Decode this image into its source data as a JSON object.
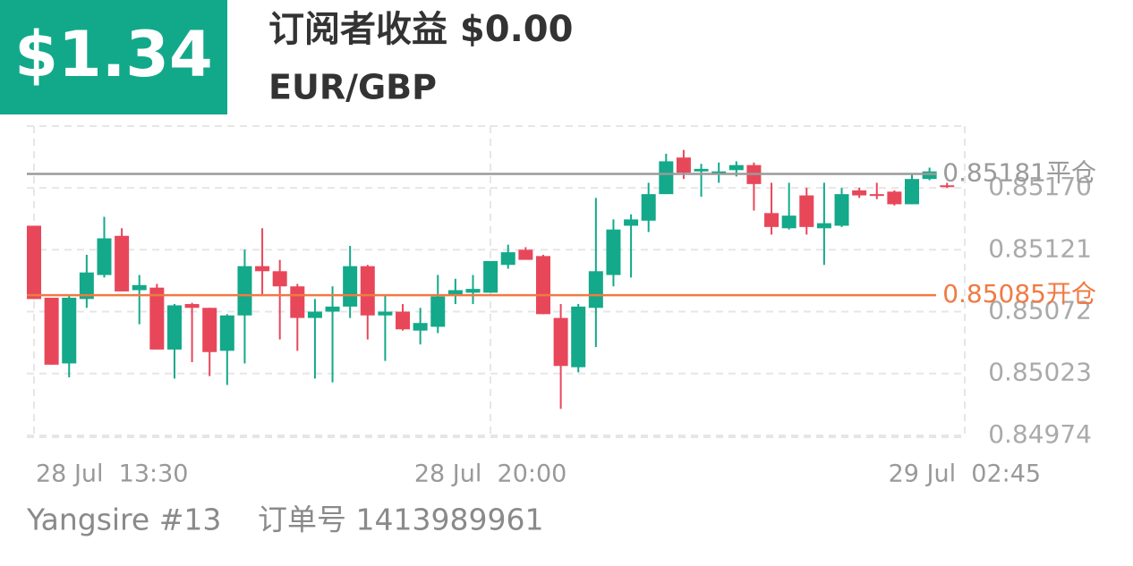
{
  "header": {
    "amount": "$1.34",
    "title": "订阅者收益 $0.00",
    "symbol": "EUR/GBP"
  },
  "chart_data": {
    "type": "candlestick",
    "categories": [
      "28 Jul  13:30",
      null,
      null,
      null,
      null,
      null,
      null,
      null,
      null,
      null,
      null,
      null,
      null,
      null,
      null,
      null,
      null,
      null,
      null,
      null,
      null,
      null,
      null,
      null,
      null,
      null,
      "28 Jul  20:00",
      null,
      null,
      null,
      null,
      null,
      null,
      null,
      null,
      null,
      null,
      null,
      null,
      null,
      null,
      null,
      null,
      null,
      null,
      null,
      null,
      null,
      null,
      null,
      null,
      null,
      null,
      "29 Jul  02:45"
    ],
    "open": [
      0.8514,
      0.85083,
      0.85031,
      0.85082,
      0.85101,
      0.85132,
      0.85089,
      0.85091,
      0.85042,
      0.85078,
      0.85075,
      0.85041,
      0.85069,
      0.85108,
      0.85104,
      0.85092,
      0.85067,
      0.85072,
      0.85076,
      0.85108,
      0.85069,
      0.85072,
      0.85057,
      0.8506,
      0.85085,
      0.85087,
      0.85087,
      0.85109,
      0.85121,
      0.85116,
      0.85067,
      0.85028,
      0.85075,
      0.85101,
      0.8514,
      0.85144,
      0.85165,
      0.85194,
      0.85183,
      0.85182,
      0.85184,
      0.85188,
      0.8515,
      0.85138,
      0.85164,
      0.85138,
      0.8514,
      0.85168,
      0.85165,
      0.85167,
      0.85157,
      0.85177,
      0.85172,
      null
    ],
    "high": [
      0.8514,
      0.85083,
      0.85085,
      0.85117,
      0.85147,
      0.85138,
      0.85101,
      0.85094,
      0.85078,
      0.85079,
      0.85075,
      0.8507,
      0.85121,
      0.85138,
      0.85113,
      0.85094,
      0.85082,
      0.85092,
      0.85124,
      0.85109,
      0.85085,
      0.85078,
      0.85075,
      0.85101,
      0.85098,
      0.85101,
      0.85112,
      0.85125,
      0.85123,
      0.85117,
      0.85078,
      0.85078,
      0.85162,
      0.85145,
      0.85149,
      0.85174,
      0.85197,
      0.852,
      0.85189,
      0.8519,
      0.85191,
      0.8519,
      0.85174,
      0.85174,
      0.8517,
      0.85174,
      0.8517,
      0.8517,
      0.85174,
      0.85168,
      0.85181,
      0.85186,
      0.85174,
      null
    ],
    "low": [
      0.85082,
      0.8503,
      0.8502,
      0.85075,
      0.85099,
      0.85088,
      0.85062,
      0.85042,
      0.85019,
      0.85032,
      0.85021,
      0.85014,
      0.85031,
      0.85085,
      0.8505,
      0.85041,
      0.85019,
      0.85016,
      0.85067,
      0.8505,
      0.85033,
      0.85057,
      0.85046,
      0.85055,
      0.85078,
      0.85078,
      0.85087,
      0.85106,
      0.85113,
      0.8507,
      0.84995,
      0.85024,
      0.85044,
      0.85092,
      0.85099,
      0.85135,
      0.85165,
      0.85177,
      0.85163,
      0.85174,
      0.85179,
      0.85152,
      0.85133,
      0.85137,
      0.85133,
      0.85109,
      0.85139,
      0.85162,
      0.85161,
      0.85156,
      0.85157,
      0.85176,
      0.8517,
      null
    ],
    "close": [
      0.85082,
      0.8503,
      0.85083,
      0.85103,
      0.8513,
      0.85088,
      0.85093,
      0.85042,
      0.85077,
      0.85075,
      0.8504,
      0.85069,
      0.85108,
      0.85104,
      0.85092,
      0.85067,
      0.85072,
      0.85076,
      0.85108,
      0.85069,
      0.85072,
      0.85058,
      0.85063,
      0.85084,
      0.85089,
      0.8509,
      0.85112,
      0.85119,
      0.85113,
      0.8507,
      0.85029,
      0.85076,
      0.85104,
      0.85137,
      0.85145,
      0.85165,
      0.85191,
      0.85182,
      0.85185,
      0.85183,
      0.85188,
      0.85173,
      0.85139,
      0.85148,
      0.85139,
      0.85142,
      0.85165,
      0.85164,
      0.85164,
      0.85157,
      0.85177,
      0.85183,
      0.85171,
      null
    ],
    "up_color": "#13a98a",
    "down_color": "#e8475a",
    "ylim": [
      0.84972,
      0.85222
    ],
    "yticks": [
      0.84974,
      0.85023,
      0.85072,
      0.85121,
      {
        "value": 0.8517,
        "label": "0.85170"
      }
    ],
    "grid": true,
    "levels": [
      {
        "value": 0.85181,
        "label": "0.85181平仓",
        "color": "#9a9a9a"
      },
      {
        "value": 0.85085,
        "label": "0.85085开仓",
        "color": "#f07a43"
      }
    ]
  },
  "footer": {
    "account": "Yangsire #13",
    "order": "订单号 1413989961"
  }
}
